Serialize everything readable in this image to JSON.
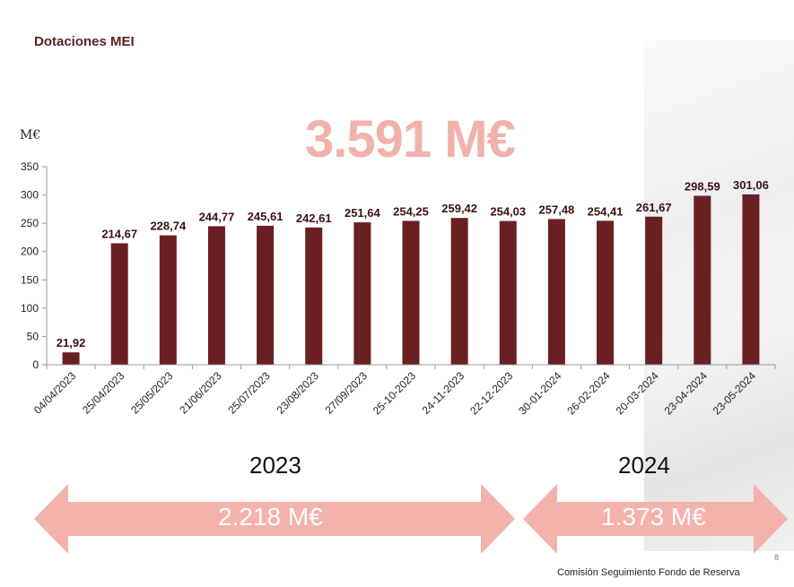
{
  "slide": {
    "title": "Dotaciones MEI",
    "total": "3.591 M€",
    "page_number": "8",
    "footer": "Comisión Seguimiento Fondo de Reserva"
  },
  "years": [
    {
      "label": "2023",
      "total": "2.218 M€"
    },
    {
      "label": "2024",
      "total": "1.373 M€"
    }
  ],
  "colors": {
    "bar": "#6a1f22",
    "title": "#5a1f22",
    "accent": "#f2b1aa",
    "arrow": "#f3b2ab"
  },
  "chart_data": {
    "type": "bar",
    "ylabel": "M€",
    "ylim": [
      0,
      350
    ],
    "yticks": [
      0,
      50,
      100,
      150,
      200,
      250,
      300,
      350
    ],
    "categories": [
      "04/04/2023",
      "25/04/2023",
      "25/05/2023",
      "21/06/2023",
      "25/07/2023",
      "23/08/2023",
      "27/09/2023",
      "25-10-2023",
      "24-11-2023",
      "22-12-2023",
      "30-01-2024",
      "26-02-2024",
      "20-03-2024",
      "23-04-2024",
      "23-05-2024"
    ],
    "values": [
      21.92,
      214.67,
      228.74,
      244.77,
      245.61,
      242.61,
      251.64,
      254.25,
      259.42,
      254.03,
      257.48,
      254.41,
      261.67,
      298.59,
      301.06
    ],
    "data_labels": [
      "21,92",
      "214,67",
      "228,74",
      "244,77",
      "245,61",
      "242,61",
      "251,64",
      "254,25",
      "259,42",
      "254,03",
      "257,48",
      "254,41",
      "261,67",
      "298,59",
      "301,06"
    ],
    "grid": false,
    "legend": "none"
  }
}
